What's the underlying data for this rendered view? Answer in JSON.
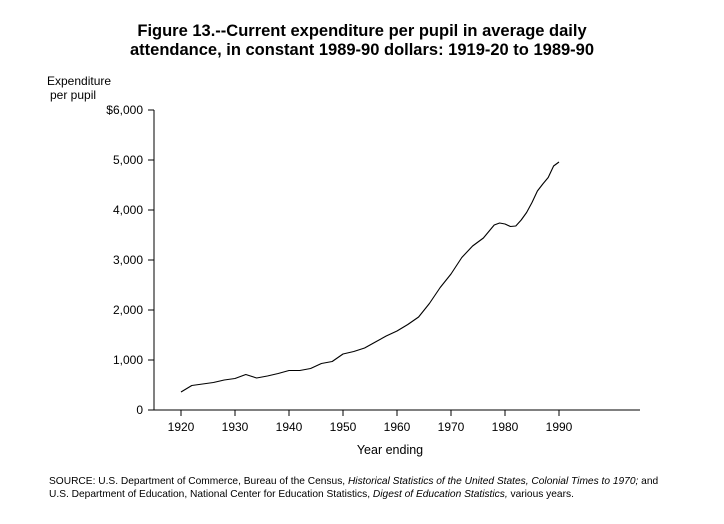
{
  "chart_data": {
    "type": "line",
    "title_line1": "Figure 13.--Current expenditure per pupil in average daily",
    "title_line2": "attendance, in constant 1989-90 dollars:  1919-20 to 1989-90",
    "ylabel_line1": "Expenditure",
    "ylabel_line2": "per pupil",
    "xlabel": "Year ending",
    "xlim": [
      1915,
      2005
    ],
    "ylim": [
      0,
      6000
    ],
    "x_ticks": [
      1920,
      1930,
      1940,
      1950,
      1960,
      1970,
      1980,
      1990
    ],
    "x_tick_labels": [
      "1920",
      "1930",
      "1940",
      "1950",
      "1960",
      "1970",
      "1980",
      "1990"
    ],
    "y_ticks": [
      0,
      1000,
      2000,
      3000,
      4000,
      5000,
      6000
    ],
    "y_tick_labels": [
      "0",
      "1,000",
      "2,000",
      "3,000",
      "4,000",
      "5,000",
      "$6,000"
    ],
    "grid": false,
    "series": [
      {
        "x": [
          1920,
          1922,
          1924,
          1926,
          1928,
          1930,
          1932,
          1934,
          1936,
          1938,
          1940,
          1942,
          1944,
          1946,
          1948,
          1950,
          1952,
          1954,
          1956,
          1958,
          1960,
          1962,
          1964,
          1966,
          1968,
          1970,
          1972,
          1974,
          1976,
          1978,
          1979,
          1980,
          1981,
          1982,
          1983,
          1984,
          1985,
          1986,
          1987,
          1988,
          1989,
          1990
        ],
        "y": [
          360,
          490,
          520,
          550,
          600,
          630,
          710,
          640,
          680,
          730,
          790,
          790,
          830,
          930,
          970,
          1120,
          1170,
          1240,
          1360,
          1480,
          1580,
          1710,
          1860,
          2130,
          2450,
          2720,
          3050,
          3280,
          3440,
          3700,
          3740,
          3720,
          3670,
          3680,
          3800,
          3950,
          4150,
          4380,
          4520,
          4650,
          4880,
          4960
        ]
      }
    ]
  },
  "source": {
    "prefix": "SOURCE:  U.S. Department of Commerce, Bureau of the Census, ",
    "italic1": "Historical Statistics of the United States, Colonial Times to 1970;",
    "mid": "  and",
    "line2_prefix": "U.S. Department of Education, National Center for Education Statistics, ",
    "italic2": "Digest of Education Statistics,",
    "suffix": "  various years."
  }
}
